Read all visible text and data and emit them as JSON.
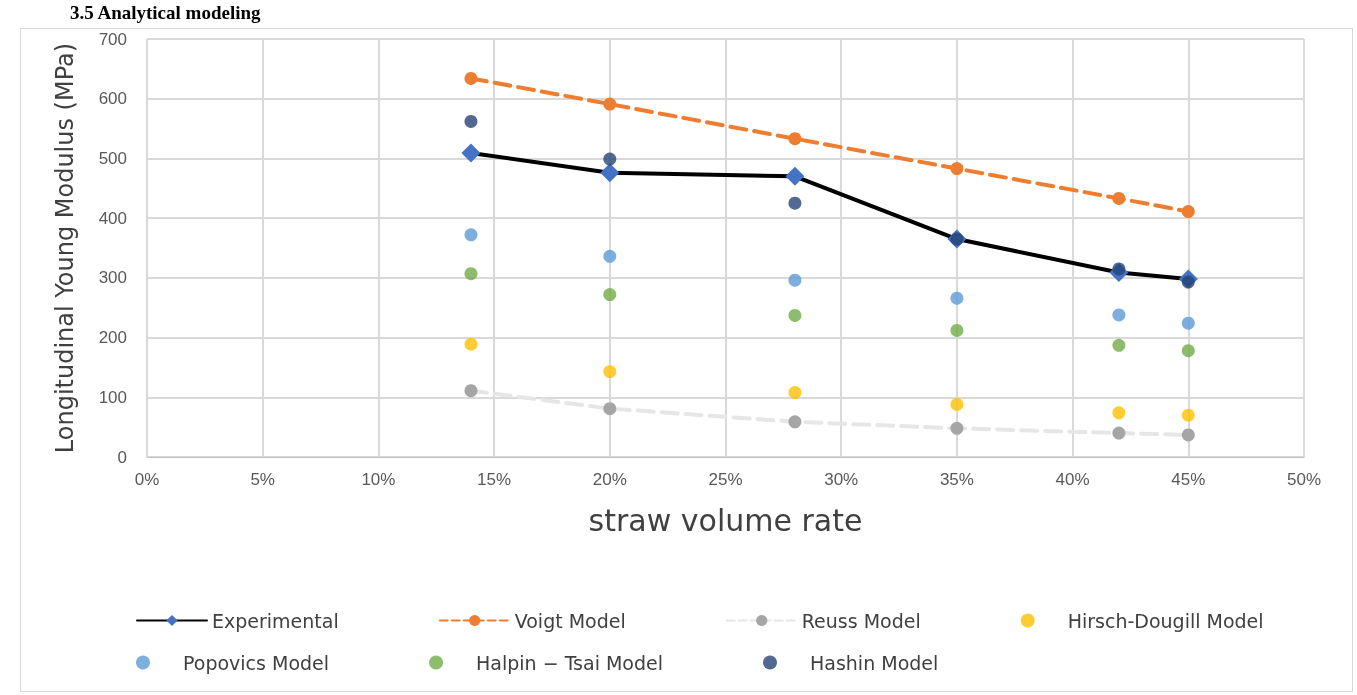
{
  "chart_data": {
    "type": "line",
    "title": "3.5 Analytical modeling",
    "xlabel": "straw volume rate",
    "ylabel": "Longitudinal Young Modulus (MPa)",
    "x": [
      14,
      20,
      28,
      35,
      42,
      45
    ],
    "xlim": [
      0,
      50
    ],
    "xticks": [
      {
        "value": 0,
        "label": "0%"
      },
      {
        "value": 5,
        "label": "5%"
      },
      {
        "value": 10,
        "label": "10%"
      },
      {
        "value": 15,
        "label": "15%"
      },
      {
        "value": 20,
        "label": "20%"
      },
      {
        "value": 25,
        "label": "25%"
      },
      {
        "value": 30,
        "label": "30%"
      },
      {
        "value": 35,
        "label": "35%"
      },
      {
        "value": 40,
        "label": "40%"
      },
      {
        "value": 45,
        "label": "45%"
      },
      {
        "value": 50,
        "label": "50%"
      }
    ],
    "ylim": [
      0,
      700
    ],
    "yticks": [
      0,
      100,
      200,
      300,
      400,
      500,
      600,
      700
    ],
    "grid": true,
    "legend": "bottom",
    "series": [
      {
        "name": "Experimental",
        "color": "#000000",
        "colors": [
          "#4472c4",
          "#4472c4",
          "#4472c4",
          "#4472c4",
          "#4472c4",
          "#4472c4"
        ],
        "marker": "diamond",
        "line_style": "solid",
        "values": [
          509,
          476,
          470,
          365,
          309,
          298
        ]
      },
      {
        "name": "Voigt Model",
        "color": "#ed7d31",
        "marker": "circle",
        "line_style": "dashed",
        "values": [
          634,
          591,
          533,
          483,
          433,
          411
        ]
      },
      {
        "name": "Reuss Model",
        "color": "#e7e6e6",
        "colors": [
          "#a5a5a5",
          "#a5a5a5",
          "#a5a5a5",
          "#a5a5a5",
          "#a5a5a5",
          "#a5a5a5"
        ],
        "marker": "circle",
        "line_style": "dashed",
        "values": [
          111,
          81,
          59,
          48,
          40,
          37
        ]
      },
      {
        "name": "Hirsch-Dougill Model",
        "type": "scatter",
        "color": "#ffc000",
        "marker": "circle",
        "values": [
          189,
          143,
          108,
          88,
          74,
          70
        ]
      },
      {
        "name": "Popovics Model",
        "type": "scatter",
        "color": "#5b9bd5",
        "marker": "circle",
        "values": [
          372,
          336,
          296,
          266,
          238,
          224
        ]
      },
      {
        "name": "Halpin − Tsai Model",
        "type": "scatter",
        "color": "#70ad47",
        "marker": "circle",
        "values": [
          307,
          272,
          237,
          212,
          187,
          178
        ]
      },
      {
        "name": "Hashin Model",
        "type": "scatter",
        "color": "#264478",
        "marker": "circle",
        "values": [
          562,
          499,
          425,
          365,
          315,
          293
        ]
      }
    ]
  }
}
